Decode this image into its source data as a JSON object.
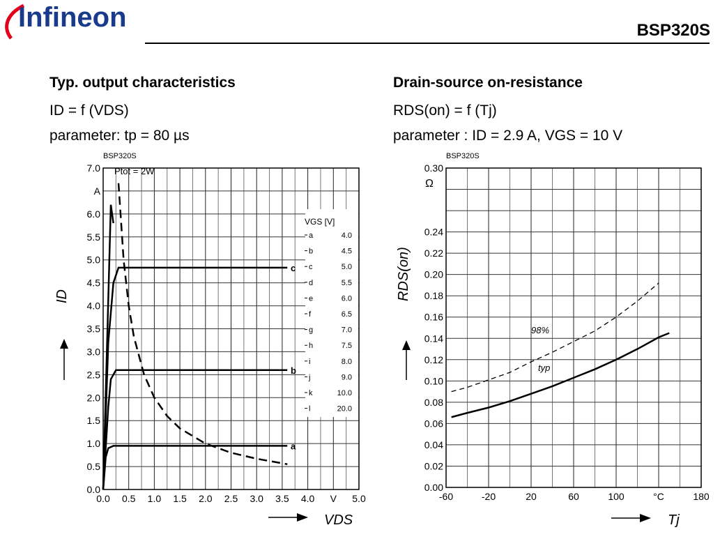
{
  "header": {
    "logo": "Infineon",
    "part": "BSP320S"
  },
  "left": {
    "title": "Typ. output characteristics",
    "formula": "ID = f (VDS)",
    "param": "parameter: tp = 80 µs"
  },
  "right": {
    "title": "Drain-source on-resistance",
    "formula": "RDS(on) = f (Tj)",
    "param": "parameter : ID = 2.9 A, VGS = 10 V"
  },
  "chart_data": [
    {
      "type": "line",
      "tag": "BSP320S",
      "xlabel": "VDS",
      "xunit": "V",
      "ylabel": "ID",
      "yunit": "A",
      "xlim": [
        0,
        5
      ],
      "ylim": [
        0,
        7
      ],
      "xticks": [
        "0.0",
        "0.5",
        "1.0",
        "1.5",
        "2.0",
        "2.5",
        "3.0",
        "3.5",
        "4.0",
        "V",
        "5.0"
      ],
      "yticks": [
        "0.0",
        "0.5",
        "1.0",
        "1.5",
        "2.0",
        "2.5",
        "3.0",
        "3.5",
        "4.0",
        "4.5",
        "5.0",
        "5.5",
        "6.0",
        "A",
        "7.0"
      ],
      "annotation": "Ptot = 2W",
      "legend": {
        "title": "VGS [V]",
        "items": [
          [
            "a",
            "4.0"
          ],
          [
            "b",
            "4.5"
          ],
          [
            "c",
            "5.0"
          ],
          [
            "d",
            "5.5"
          ],
          [
            "e",
            "6.0"
          ],
          [
            "f",
            "6.5"
          ],
          [
            "g",
            "7.0"
          ],
          [
            "h",
            "7.5"
          ],
          [
            "i",
            "8.0"
          ],
          [
            "j",
            "9.0"
          ],
          [
            "k",
            "10.0"
          ],
          [
            "l",
            "20.0"
          ]
        ]
      },
      "series": [
        {
          "name": "a",
          "label": "a",
          "points": [
            [
              0,
              0
            ],
            [
              0.05,
              0.7
            ],
            [
              0.1,
              0.9
            ],
            [
              0.2,
              0.95
            ],
            [
              3.6,
              0.95
            ]
          ]
        },
        {
          "name": "b",
          "label": "b",
          "points": [
            [
              0,
              0
            ],
            [
              0.1,
              1.8
            ],
            [
              0.15,
              2.4
            ],
            [
              0.25,
              2.6
            ],
            [
              3.6,
              2.6
            ]
          ]
        },
        {
          "name": "c",
          "label": "c",
          "points": [
            [
              0,
              0
            ],
            [
              0.1,
              3.2
            ],
            [
              0.2,
              4.5
            ],
            [
              0.3,
              4.83
            ],
            [
              3.6,
              4.83
            ]
          ]
        },
        {
          "name": "d-l",
          "label": "",
          "points": [
            [
              0,
              0
            ],
            [
              0.15,
              6.2
            ],
            [
              0.2,
              5.8
            ]
          ]
        },
        {
          "name": "Ptot",
          "dashed": true,
          "points": [
            [
              0.3,
              6.67
            ],
            [
              0.4,
              5
            ],
            [
              0.5,
              4
            ],
            [
              0.6,
              3.33
            ],
            [
              0.8,
              2.5
            ],
            [
              1,
              2
            ],
            [
              1.25,
              1.6
            ],
            [
              1.5,
              1.33
            ],
            [
              2,
              1
            ],
            [
              2.5,
              0.8
            ],
            [
              3,
              0.67
            ],
            [
              3.6,
              0.55
            ]
          ]
        }
      ]
    },
    {
      "type": "line",
      "tag": "BSP320S",
      "xlabel": "Tj",
      "xunit": "°C",
      "ylabel": "RDS(on)",
      "yunit": "Ω",
      "xlim": [
        -60,
        180
      ],
      "ylim": [
        0,
        0.3
      ],
      "xticks": [
        "-60",
        "-20",
        "20",
        "60",
        "100",
        "°C",
        "180"
      ],
      "yticks": [
        "0.00",
        "0.02",
        "0.04",
        "0.06",
        "0.08",
        "0.10",
        "0.12",
        "0.14",
        "0.16",
        "0.18",
        "0.20",
        "0.22",
        "0.24",
        "",
        "",
        "0.30"
      ],
      "series": [
        {
          "name": "typ",
          "label": "typ",
          "x": [
            -55,
            -40,
            -20,
            0,
            20,
            40,
            60,
            80,
            100,
            120,
            140,
            150
          ],
          "y": [
            0.066,
            0.07,
            0.075,
            0.081,
            0.088,
            0.095,
            0.103,
            0.111,
            0.12,
            0.13,
            0.141,
            0.145
          ]
        },
        {
          "name": "98%",
          "label": "98%",
          "dashed": true,
          "x": [
            -55,
            -40,
            -20,
            0,
            20,
            40,
            60,
            80,
            100,
            120,
            140
          ],
          "y": [
            0.09,
            0.094,
            0.101,
            0.108,
            0.118,
            0.127,
            0.137,
            0.147,
            0.16,
            0.175,
            0.192
          ]
        }
      ]
    }
  ]
}
